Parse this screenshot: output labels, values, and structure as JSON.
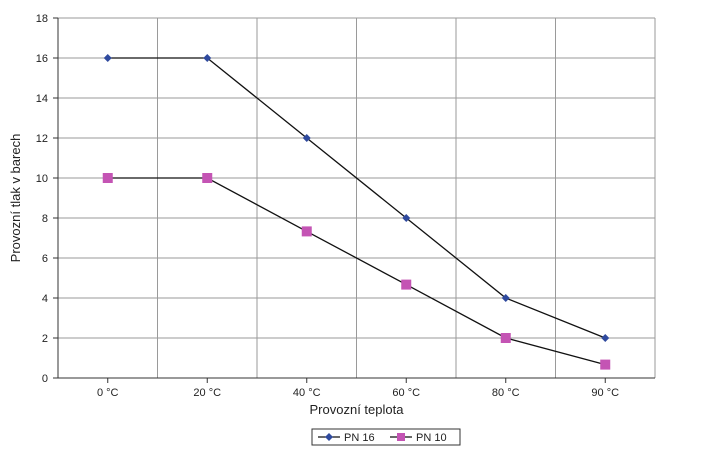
{
  "chart_data": {
    "type": "line",
    "categories": [
      "0 °C",
      "20 °C",
      "40 °C",
      "60 °C",
      "80 °C",
      "90 °C"
    ],
    "series": [
      {
        "name": "PN 16",
        "values": [
          16,
          16,
          12,
          8,
          4,
          2
        ],
        "color": "#2f4a9e",
        "marker": "diamond"
      },
      {
        "name": "PN 10",
        "values": [
          10,
          10,
          7.33,
          4.67,
          2,
          0.67
        ],
        "color": "#c454b4",
        "marker": "square"
      }
    ],
    "xlabel": "Provozní teplota",
    "ylabel": "Provozní tlak v barech",
    "ylim": [
      0,
      18
    ],
    "yticks": [
      "0",
      "2",
      "4",
      "6",
      "8",
      "10",
      "12",
      "14",
      "16",
      "18"
    ],
    "grid": true,
    "legend_position": "bottom-center"
  }
}
